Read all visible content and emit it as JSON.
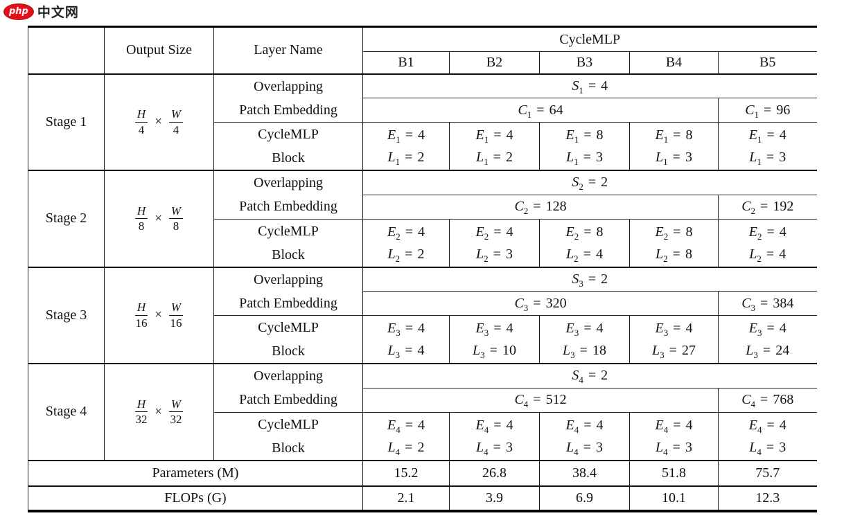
{
  "logo": {
    "badge": "php",
    "site": "中文网"
  },
  "table": {
    "symbols": {
      "equals": "=",
      "times": "×"
    },
    "header": {
      "output_size": "Output Size",
      "layer_name": "Layer Name",
      "group": "CycleMLP",
      "models": [
        "B1",
        "B2",
        "B3",
        "B4",
        "B5"
      ]
    },
    "layer_names": {
      "patch": [
        "Overlapping",
        "Patch Embedding"
      ],
      "block": [
        "CycleMLP",
        "Block"
      ]
    },
    "stages": [
      {
        "label": "Stage 1",
        "sub": "1",
        "output": {
          "num1": "H",
          "den1": "4",
          "num2": "W",
          "den2": "4"
        },
        "s": {
          "var": "S",
          "value": "4"
        },
        "c_main": {
          "var": "C",
          "value": "64"
        },
        "c_last": {
          "var": "C",
          "value": "96"
        },
        "e_var": "E",
        "l_var": "L",
        "e_values": [
          "4",
          "4",
          "8",
          "8",
          "4"
        ],
        "l_values": [
          "2",
          "2",
          "3",
          "3",
          "3"
        ]
      },
      {
        "label": "Stage 2",
        "sub": "2",
        "output": {
          "num1": "H",
          "den1": "8",
          "num2": "W",
          "den2": "8"
        },
        "s": {
          "var": "S",
          "value": "2"
        },
        "c_main": {
          "var": "C",
          "value": "128"
        },
        "c_last": {
          "var": "C",
          "value": "192"
        },
        "e_var": "E",
        "l_var": "L",
        "e_values": [
          "4",
          "4",
          "8",
          "8",
          "4"
        ],
        "l_values": [
          "2",
          "3",
          "4",
          "8",
          "4"
        ]
      },
      {
        "label": "Stage 3",
        "sub": "3",
        "output": {
          "num1": "H",
          "den1": "16",
          "num2": "W",
          "den2": "16"
        },
        "s": {
          "var": "S",
          "value": "2"
        },
        "c_main": {
          "var": "C",
          "value": "320"
        },
        "c_last": {
          "var": "C",
          "value": "384"
        },
        "e_var": "E",
        "l_var": "L",
        "e_values": [
          "4",
          "4",
          "4",
          "4",
          "4"
        ],
        "l_values": [
          "4",
          "10",
          "18",
          "27",
          "24"
        ]
      },
      {
        "label": "Stage 4",
        "sub": "4",
        "output": {
          "num1": "H",
          "den1": "32",
          "num2": "W",
          "den2": "32"
        },
        "s": {
          "var": "S",
          "value": "2"
        },
        "c_main": {
          "var": "C",
          "value": "512"
        },
        "c_last": {
          "var": "C",
          "value": "768"
        },
        "e_var": "E",
        "l_var": "L",
        "e_values": [
          "4",
          "4",
          "4",
          "4",
          "4"
        ],
        "l_values": [
          "2",
          "3",
          "3",
          "3",
          "3"
        ]
      }
    ],
    "footer": [
      {
        "label": "Parameters (M)",
        "values": [
          "15.2",
          "26.8",
          "38.4",
          "51.8",
          "75.7"
        ]
      },
      {
        "label": "FLOPs (G)",
        "values": [
          "2.1",
          "3.9",
          "6.9",
          "10.1",
          "12.3"
        ]
      }
    ]
  }
}
